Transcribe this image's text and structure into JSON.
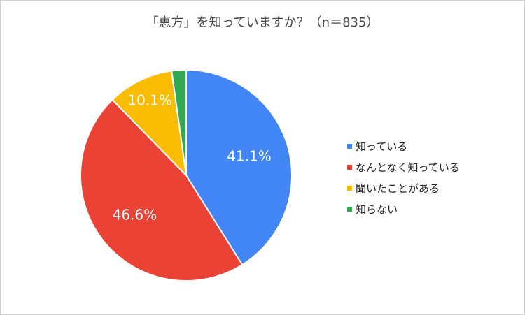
{
  "chart_data": {
    "type": "pie",
    "title": "「恵方」を知っていますか？（n＝835）",
    "slices": [
      {
        "label": "知っている",
        "value": 41.1,
        "display": "41.1%",
        "color": "#4285F4"
      },
      {
        "label": "なんとなく知っている",
        "value": 46.6,
        "display": "46.6%",
        "color": "#EA4335"
      },
      {
        "label": "聞いたことがある",
        "value": 10.1,
        "display": "10.1%",
        "color": "#FBBC04"
      },
      {
        "label": "知らない",
        "value": 2.2,
        "display": "",
        "color": "#34A853"
      }
    ],
    "legend_position": "right",
    "start_angle": "top",
    "direction": "clockwise"
  }
}
